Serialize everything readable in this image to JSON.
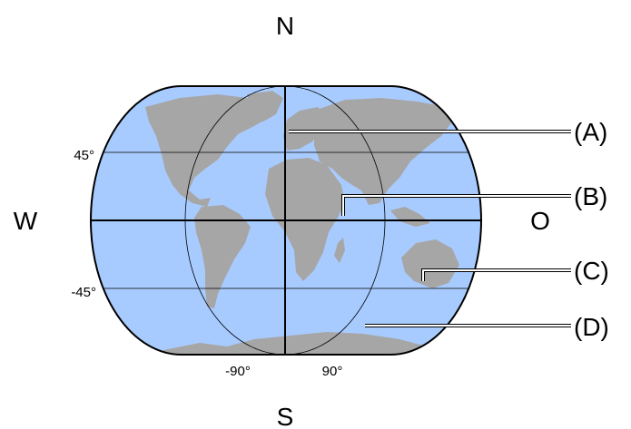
{
  "compass": {
    "north": "N",
    "south": "S",
    "west": "W",
    "east": "O"
  },
  "latitude_labels": {
    "north": "45°",
    "south": "-45°"
  },
  "longitude_labels": {
    "west": "-90°",
    "east": "90°"
  },
  "callouts": {
    "a": "(A)",
    "b": "(B)",
    "c": "(C)",
    "d": "(D)"
  },
  "colors": {
    "ocean": "#a8cbff",
    "land": "#a6a6a6",
    "outline": "#000000",
    "leader": "#ffffff"
  }
}
